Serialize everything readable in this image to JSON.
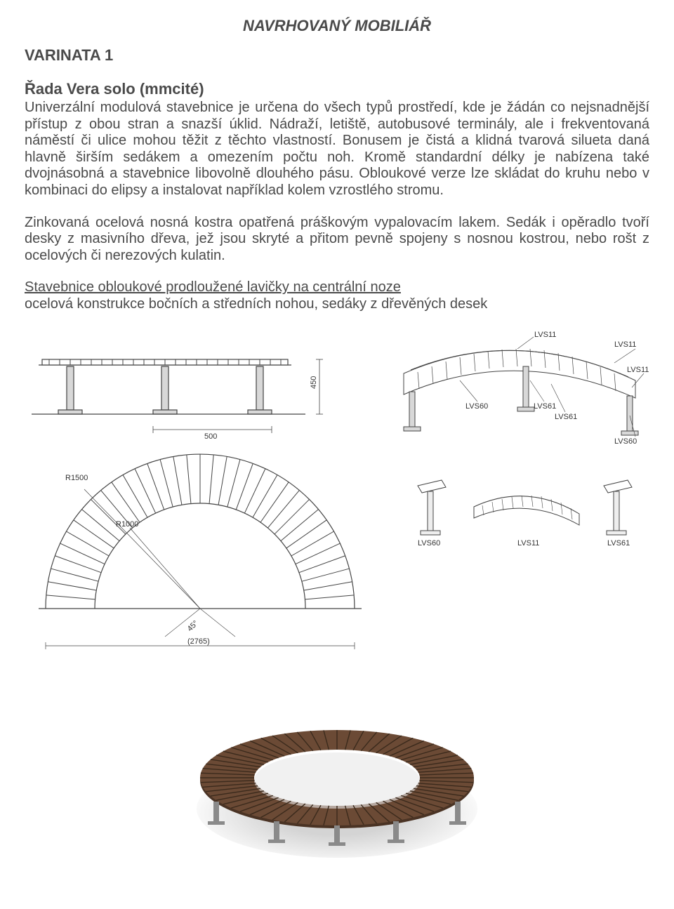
{
  "title": "NAVRHOVANÝ MOBILIÁŘ",
  "variant": "VARINATA 1",
  "series": "Řada Vera solo (mmcité)",
  "para1": "Univerzální modulová stavebnice je určena do všech typů prostředí, kde je žádán co nejsnadnější přístup z obou stran a snazší úklid. Nádraží, letiště, autobusové terminály, ale i frekventovaná náměstí či ulice mohou těžit z těchto vlastností. Bonusem je čistá a klidná tvarová silueta daná hlavně širším sedákem a omezením počtu noh. Kromě standardní délky je nabízena také dvojnásobná a stavebnice libovolně dlouhého pásu. Obloukové verze lze skládat do kruhu nebo v kombinaci do elipsy a instalovat například kolem vzrostlého stromu.",
  "para2": "Zinkovaná ocelová nosná kostra opatřená práškovým vypalovacím lakem. Sedák i opěradlo tvoří desky z masivního dřeva, jež jsou skryté a přitom pevně spojeny s nosnou kostrou, nebo rošt z ocelových či nerezových kulatin.",
  "spec_underline": "Stavebnice obloukové prodloužené lavičky na centrální noze",
  "spec_body": "ocelová konstrukce bočních a středních nohou, sedáky z dřevěných desek",
  "diagram": {
    "elev": {
      "height_dim": "450",
      "base_dim": "500"
    },
    "plan": {
      "r_outer": "R1500",
      "r_inner": "R1000",
      "angle": "45°",
      "chord": "(2765)"
    },
    "labels": {
      "lvs11": "LVS11",
      "lvs60": "LVS60",
      "lvs61": "LVS61"
    },
    "stroke": "#444444",
    "fill_light": "#d8d8d8"
  },
  "photo": {
    "wood": "#6b4a35",
    "wood_dark": "#4a3324",
    "frame": "#8a8a8a",
    "shadow": "#dcdcdc"
  }
}
